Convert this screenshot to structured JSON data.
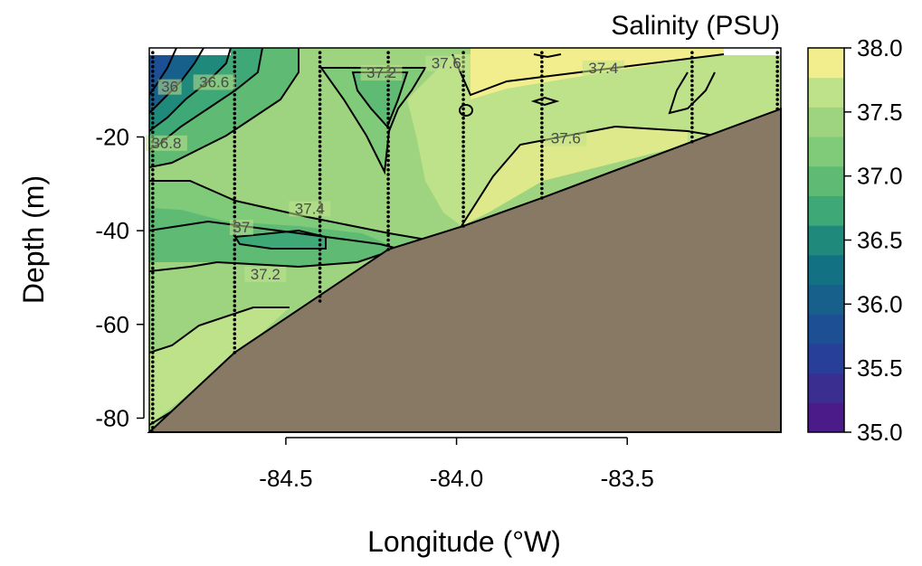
{
  "chart_data": {
    "type": "heatmap",
    "title": "",
    "xlabel": "Longitude (°W)",
    "ylabel": "Depth (m)",
    "xlim": [
      -84.9,
      -83.05
    ],
    "ylim": [
      -83,
      -1
    ],
    "x_ticks": [
      -84.5,
      -84.0,
      -83.5
    ],
    "x_tick_labels": [
      "-84.5",
      "-84.0",
      "-83.5"
    ],
    "y_ticks": [
      -20,
      -40,
      -60,
      -80
    ],
    "y_tick_labels": [
      "-20",
      "-40",
      "-60",
      "-80"
    ],
    "colorbar": {
      "title": "Salinity (PSU)",
      "min": 35.0,
      "max": 38.0,
      "step": 0.25,
      "ticks": [
        35.0,
        35.5,
        36.0,
        36.5,
        37.0,
        37.5,
        38.0
      ],
      "tick_labels": [
        "35.0",
        "35.5",
        "36.0",
        "36.5",
        "37.0",
        "37.5",
        "38.0"
      ],
      "colors": [
        "#4b1b8a",
        "#3b2e91",
        "#273f98",
        "#1d4f94",
        "#17608c",
        "#137184",
        "#1f8a7c",
        "#3ea876",
        "#5fba74",
        "#7fcb79",
        "#9ed47f",
        "#bde28a",
        "#f3ee8d"
      ]
    },
    "bathymetry": {
      "color": "#877964",
      "longitude": [
        -84.9,
        -84.65,
        -84.2,
        -83.98,
        -83.75,
        -83.31,
        -83.05
      ],
      "depth": [
        -83,
        -66,
        -44,
        -39,
        -33,
        -21,
        -14
      ]
    },
    "stations": [
      {
        "longitude": -84.89,
        "max_depth": -83
      },
      {
        "longitude": -84.65,
        "max_depth": -66
      },
      {
        "longitude": -84.4,
        "max_depth": -55
      },
      {
        "longitude": -84.2,
        "max_depth": -44
      },
      {
        "longitude": -83.98,
        "max_depth": -39
      },
      {
        "longitude": -83.75,
        "max_depth": -33
      },
      {
        "longitude": -83.31,
        "max_depth": -21
      },
      {
        "longitude": -83.06,
        "max_depth": -14
      }
    ],
    "contour_labels": [
      {
        "text": "36",
        "longitude": -84.84,
        "depth": -10
      },
      {
        "text": "36.6",
        "longitude": -84.71,
        "depth": -9
      },
      {
        "text": "36.8",
        "longitude": -84.85,
        "depth": -22
      },
      {
        "text": "37.2",
        "longitude": -84.22,
        "depth": -7
      },
      {
        "text": "37.6",
        "longitude": -84.03,
        "depth": -5
      },
      {
        "text": "37.4",
        "longitude": -83.57,
        "depth": -6
      },
      {
        "text": "37.6",
        "longitude": -83.68,
        "depth": -21
      },
      {
        "text": "37.4",
        "longitude": -84.43,
        "depth": -36
      },
      {
        "text": "37",
        "longitude": -84.63,
        "depth": -40
      },
      {
        "text": "37.2",
        "longitude": -84.56,
        "depth": -50
      }
    ]
  }
}
